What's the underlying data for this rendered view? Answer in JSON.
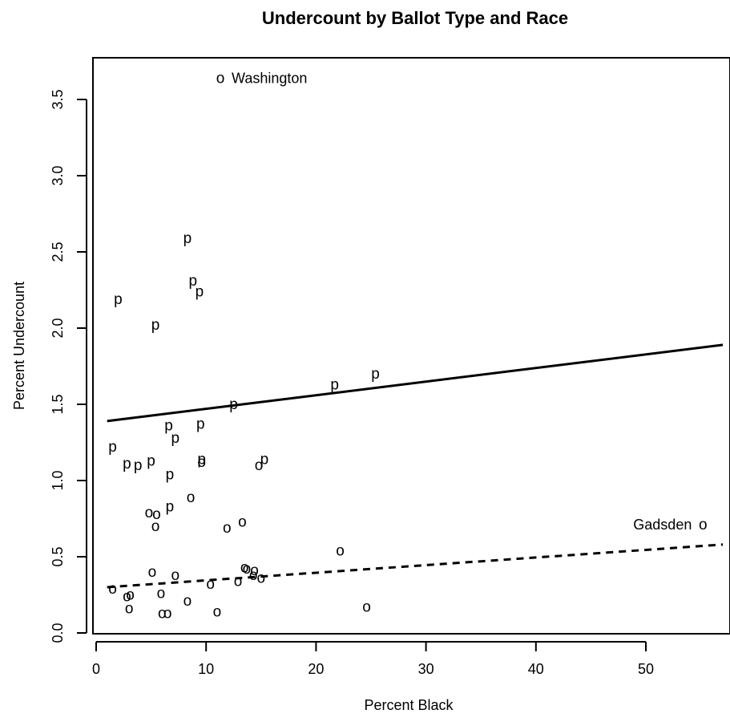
{
  "chart_data": {
    "type": "scatter",
    "title": "Undercount by Ballot Type and Race",
    "xlabel": "Percent Black",
    "ylabel": "Percent Undercount",
    "xlim": [
      0,
      57
    ],
    "ylim": [
      0,
      3.7
    ],
    "x_ticks": [
      "0",
      "10",
      "20",
      "30",
      "40",
      "50"
    ],
    "y_ticks": [
      "0.0",
      "0.5",
      "1.0",
      "1.5",
      "2.0",
      "2.5",
      "3.0",
      "3.5"
    ],
    "grid": false,
    "legend": "none",
    "series": [
      {
        "marker": "p",
        "style": "solid",
        "fit_line": [
          [
            1,
            1.39
          ],
          [
            57,
            1.89
          ]
        ],
        "points": [
          [
            1.5,
            1.22
          ],
          [
            2.0,
            2.19
          ],
          [
            2.8,
            1.11
          ],
          [
            3.8,
            1.1
          ],
          [
            5.0,
            1.13
          ],
          [
            5.4,
            2.02
          ],
          [
            6.6,
            1.36
          ],
          [
            6.7,
            0.83
          ],
          [
            6.7,
            1.04
          ],
          [
            7.2,
            1.28
          ],
          [
            8.3,
            2.59
          ],
          [
            8.8,
            2.31
          ],
          [
            9.4,
            2.24
          ],
          [
            9.5,
            1.37
          ],
          [
            9.6,
            1.14
          ],
          [
            12.5,
            1.5
          ],
          [
            15.3,
            1.14
          ],
          [
            21.7,
            1.63
          ],
          [
            25.4,
            1.7
          ]
        ]
      },
      {
        "marker": "o",
        "style": "dashed",
        "fit_line": [
          [
            1,
            0.3
          ],
          [
            57,
            0.58
          ]
        ],
        "points": [
          [
            1.5,
            0.29
          ],
          [
            2.8,
            0.24
          ],
          [
            3.0,
            0.16
          ],
          [
            3.1,
            0.25
          ],
          [
            4.8,
            0.79
          ],
          [
            5.1,
            0.4
          ],
          [
            5.4,
            0.7
          ],
          [
            5.5,
            0.78
          ],
          [
            5.9,
            0.26
          ],
          [
            6.0,
            0.13
          ],
          [
            6.5,
            0.13
          ],
          [
            7.2,
            0.38
          ],
          [
            8.3,
            0.21
          ],
          [
            8.6,
            0.89
          ],
          [
            9.6,
            1.12
          ],
          [
            10.4,
            0.32
          ],
          [
            11.0,
            0.14
          ],
          [
            11.3,
            3.64
          ],
          [
            11.9,
            0.69
          ],
          [
            12.9,
            0.34
          ],
          [
            13.3,
            0.73
          ],
          [
            13.5,
            0.43
          ],
          [
            13.7,
            0.42
          ],
          [
            14.3,
            0.38
          ],
          [
            14.4,
            0.41
          ],
          [
            14.8,
            1.1
          ],
          [
            15.0,
            0.36
          ],
          [
            22.2,
            0.54
          ],
          [
            24.6,
            0.17
          ],
          [
            55.2,
            0.71
          ]
        ]
      }
    ],
    "annotations": [
      {
        "text": "Washington",
        "x": 11.3,
        "y": 3.64
      },
      {
        "text": "Gadsden",
        "x": 55.2,
        "y": 0.71
      }
    ]
  }
}
